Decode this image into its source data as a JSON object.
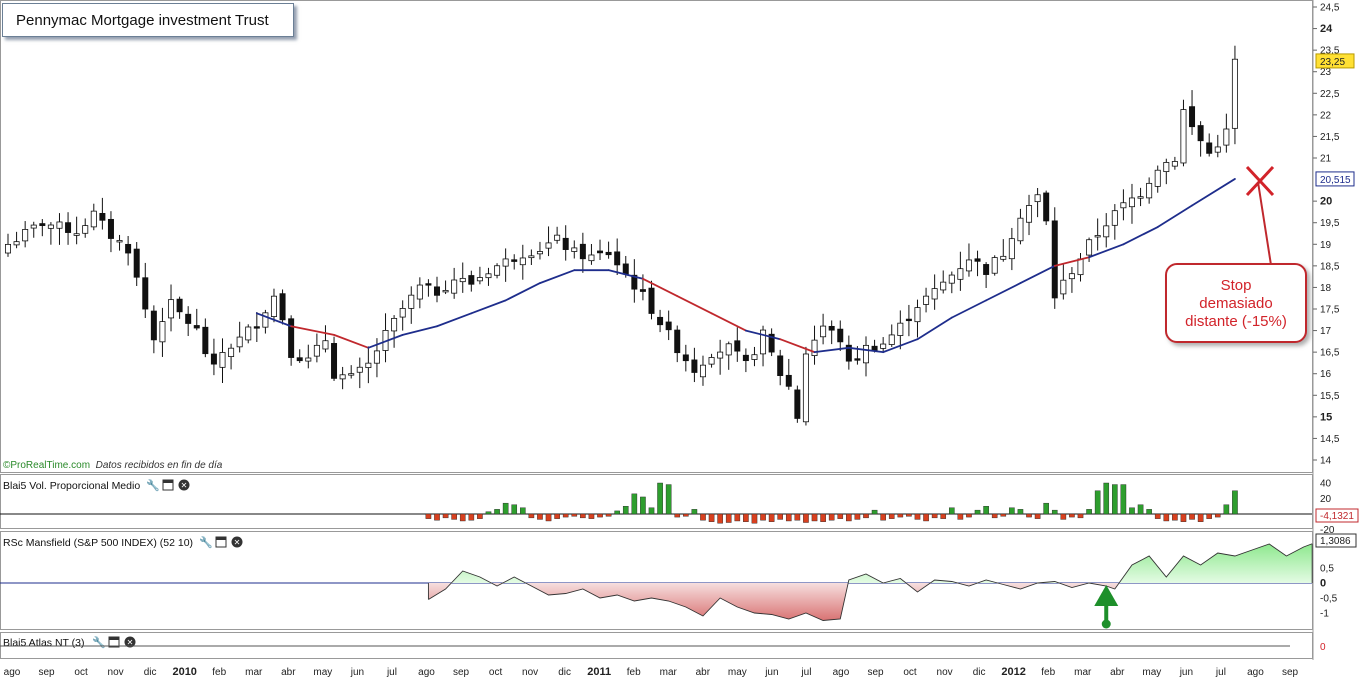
{
  "title": "Pennymac Mortgage investment Trust",
  "annotation": {
    "text_lines": [
      "Stop",
      "demasiado",
      "distante (-15%)"
    ]
  },
  "credit": {
    "brand": "ProRealTime.com",
    "note": "Datos recibidos en fin de día"
  },
  "chart_data": {
    "type": "candlestick",
    "price_axis": {
      "ticks": [
        "24,5",
        "24",
        "23,5",
        "23",
        "22,5",
        "22",
        "21,5",
        "21",
        "20",
        "19,5",
        "19",
        "18,5",
        "18",
        "17,5",
        "17",
        "16,5",
        "16",
        "15,5",
        "15",
        "14,5",
        "14"
      ],
      "bold_ticks": [
        "24",
        "20",
        "15"
      ],
      "min": 14,
      "max": 24.5,
      "last_price": "23,25",
      "ma_value": "20,515"
    },
    "time_axis": [
      {
        "label": "ago",
        "bold": false
      },
      {
        "label": "sep",
        "bold": false
      },
      {
        "label": "oct",
        "bold": false
      },
      {
        "label": "nov",
        "bold": false
      },
      {
        "label": "dic",
        "bold": false
      },
      {
        "label": "2010",
        "bold": true
      },
      {
        "label": "feb",
        "bold": false
      },
      {
        "label": "mar",
        "bold": false
      },
      {
        "label": "abr",
        "bold": false
      },
      {
        "label": "may",
        "bold": false
      },
      {
        "label": "jun",
        "bold": false
      },
      {
        "label": "jul",
        "bold": false
      },
      {
        "label": "ago",
        "bold": false
      },
      {
        "label": "sep",
        "bold": false
      },
      {
        "label": "oct",
        "bold": false
      },
      {
        "label": "nov",
        "bold": false
      },
      {
        "label": "dic",
        "bold": false
      },
      {
        "label": "2011",
        "bold": true
      },
      {
        "label": "feb",
        "bold": false
      },
      {
        "label": "mar",
        "bold": false
      },
      {
        "label": "abr",
        "bold": false
      },
      {
        "label": "may",
        "bold": false
      },
      {
        "label": "jun",
        "bold": false
      },
      {
        "label": "jul",
        "bold": false
      },
      {
        "label": "ago",
        "bold": false
      },
      {
        "label": "sep",
        "bold": false
      },
      {
        "label": "oct",
        "bold": false
      },
      {
        "label": "nov",
        "bold": false
      },
      {
        "label": "dic",
        "bold": false
      },
      {
        "label": "2012",
        "bold": true
      },
      {
        "label": "feb",
        "bold": false
      },
      {
        "label": "mar",
        "bold": false
      },
      {
        "label": "abr",
        "bold": false
      },
      {
        "label": "may",
        "bold": false
      },
      {
        "label": "jun",
        "bold": false
      },
      {
        "label": "jul",
        "bold": false
      },
      {
        "label": "ago",
        "bold": false
      },
      {
        "label": "sep",
        "bold": false
      }
    ],
    "close_path": [
      [
        0,
        19.0
      ],
      [
        4,
        19.5
      ],
      [
        8,
        19.3
      ],
      [
        10,
        19.7
      ],
      [
        12,
        19.2
      ],
      [
        14,
        18.9
      ],
      [
        16,
        17.5
      ],
      [
        17,
        16.8
      ],
      [
        18,
        17.3
      ],
      [
        19,
        17.6
      ],
      [
        20,
        17.4
      ],
      [
        22,
        17.0
      ],
      [
        23,
        16.5
      ],
      [
        24,
        16.1
      ],
      [
        25,
        16.5
      ],
      [
        27,
        16.8
      ],
      [
        29,
        17.2
      ],
      [
        31,
        17.8
      ],
      [
        32,
        17.3
      ],
      [
        33,
        16.5
      ],
      [
        35,
        16.3
      ],
      [
        37,
        16.8
      ],
      [
        38,
        16.0
      ],
      [
        40,
        15.9
      ],
      [
        42,
        16.2
      ],
      [
        44,
        16.9
      ],
      [
        46,
        17.5
      ],
      [
        48,
        18.0
      ],
      [
        50,
        17.9
      ],
      [
        52,
        18.2
      ],
      [
        54,
        18.1
      ],
      [
        56,
        18.4
      ],
      [
        58,
        18.6
      ],
      [
        60,
        18.8
      ],
      [
        62,
        18.9
      ],
      [
        64,
        19.1
      ],
      [
        66,
        18.8
      ],
      [
        68,
        18.7
      ],
      [
        70,
        18.8
      ],
      [
        72,
        18.3
      ],
      [
        74,
        17.8
      ],
      [
        76,
        17.2
      ],
      [
        78,
        16.6
      ],
      [
        80,
        16.1
      ],
      [
        82,
        16.5
      ],
      [
        84,
        16.6
      ],
      [
        86,
        16.2
      ],
      [
        88,
        16.9
      ],
      [
        90,
        16.0
      ],
      [
        91,
        15.7
      ],
      [
        92,
        15.0
      ],
      [
        93,
        16.5
      ],
      [
        95,
        17.1
      ],
      [
        97,
        16.8
      ],
      [
        98,
        16.2
      ],
      [
        100,
        16.6
      ],
      [
        102,
        16.7
      ],
      [
        104,
        17.1
      ],
      [
        106,
        17.6
      ],
      [
        108,
        17.9
      ],
      [
        110,
        18.3
      ],
      [
        112,
        18.7
      ],
      [
        114,
        18.4
      ],
      [
        116,
        18.8
      ],
      [
        118,
        19.7
      ],
      [
        120,
        20.1
      ],
      [
        121,
        19.5
      ],
      [
        122,
        17.8
      ],
      [
        124,
        18.4
      ],
      [
        126,
        19.0
      ],
      [
        128,
        19.5
      ],
      [
        130,
        19.9
      ],
      [
        132,
        20.2
      ],
      [
        134,
        20.8
      ],
      [
        136,
        21.0
      ],
      [
        137,
        22.1
      ],
      [
        138,
        21.7
      ],
      [
        140,
        21.1
      ],
      [
        142,
        21.6
      ],
      [
        143,
        23.25
      ]
    ],
    "moving_average": {
      "points": [
        [
          29,
          17.4
        ],
        [
          33,
          17.1
        ],
        [
          38,
          16.9
        ],
        [
          42,
          16.6
        ],
        [
          46,
          16.9
        ],
        [
          50,
          17.1
        ],
        [
          54,
          17.4
        ],
        [
          58,
          17.7
        ],
        [
          62,
          18.1
        ],
        [
          66,
          18.4
        ],
        [
          70,
          18.4
        ],
        [
          74,
          18.2
        ],
        [
          78,
          17.8
        ],
        [
          82,
          17.4
        ],
        [
          86,
          17.0
        ],
        [
          90,
          16.8
        ],
        [
          94,
          16.5
        ],
        [
          98,
          16.6
        ],
        [
          102,
          16.5
        ],
        [
          106,
          16.8
        ],
        [
          110,
          17.3
        ],
        [
          114,
          17.7
        ],
        [
          118,
          18.1
        ],
        [
          122,
          18.5
        ],
        [
          126,
          18.7
        ],
        [
          130,
          19.0
        ],
        [
          134,
          19.4
        ],
        [
          138,
          19.9
        ],
        [
          143,
          20.515
        ]
      ],
      "below_color": "#c0282d",
      "above_color": "#1e2d8c",
      "value": "20,515"
    },
    "panels": [
      {
        "name": "Blai5 Vol. Proporcional Medio",
        "ticks": [
          "40",
          "20",
          "-20"
        ],
        "last": "-4,1321",
        "bar_start": 49,
        "values": [
          -6,
          -8,
          -5,
          -7,
          -9,
          -8,
          -6,
          3,
          6,
          14,
          12,
          8,
          -5,
          -7,
          -9,
          -6,
          -4,
          -3,
          -5,
          -6,
          -4,
          -3,
          4,
          10,
          26,
          22,
          8,
          40,
          38,
          -4,
          -3,
          6,
          -8,
          -10,
          -12,
          -11,
          -9,
          -10,
          -12,
          -8,
          -10,
          -7,
          -9,
          -8,
          -11,
          -9,
          -10,
          -8,
          -6,
          -9,
          -7,
          -5,
          5,
          -8,
          -6,
          -4,
          -3,
          -7,
          -9,
          -5,
          -6,
          8,
          -7,
          -4,
          5,
          10,
          -5,
          -3,
          8,
          6,
          -4,
          -6,
          14,
          5,
          -7,
          -4,
          -5,
          6,
          30,
          40,
          38,
          38,
          8,
          12,
          6,
          -6,
          -9,
          -8,
          -10,
          -7,
          -10,
          -6,
          -4,
          12,
          30,
          -9,
          -12,
          -8,
          -10,
          -11,
          -12,
          -10,
          -13,
          -11,
          -12,
          -10,
          -9,
          8,
          40,
          5,
          -3,
          -4,
          -5
        ]
      },
      {
        "name": "RSc Mansfield (S&P 500 INDEX) (52 10)",
        "ticks": [
          "0,5",
          "0",
          "-0,5",
          "-1"
        ],
        "last": "1,3086",
        "points": [
          [
            49,
            -0.55
          ],
          [
            51,
            -0.2
          ],
          [
            53,
            0.4
          ],
          [
            55,
            0.2
          ],
          [
            57,
            -0.1
          ],
          [
            59,
            0.2
          ],
          [
            61,
            -0.1
          ],
          [
            63,
            -0.4
          ],
          [
            65,
            -0.35
          ],
          [
            67,
            -0.2
          ],
          [
            69,
            -0.5
          ],
          [
            71,
            -0.4
          ],
          [
            73,
            -0.6
          ],
          [
            75,
            -0.5
          ],
          [
            77,
            -0.6
          ],
          [
            79,
            -0.8
          ],
          [
            81,
            -1.1
          ],
          [
            83,
            -0.5
          ],
          [
            85,
            -0.8
          ],
          [
            87,
            -1.0
          ],
          [
            89,
            -1.05
          ],
          [
            91,
            -1.2
          ],
          [
            93,
            -1.0
          ],
          [
            95,
            -1.25
          ],
          [
            97,
            -1.2
          ],
          [
            98,
            0.1
          ],
          [
            100,
            0.3
          ],
          [
            102,
            0.0
          ],
          [
            104,
            0.15
          ],
          [
            106,
            -0.3
          ],
          [
            108,
            0.1
          ],
          [
            110,
            0.05
          ],
          [
            112,
            -0.1
          ],
          [
            114,
            0.1
          ],
          [
            116,
            -0.05
          ],
          [
            118,
            -0.2
          ],
          [
            120,
            0.0
          ],
          [
            122,
            0.05
          ],
          [
            124,
            -0.15
          ],
          [
            126,
            0.0
          ],
          [
            128,
            -0.1
          ],
          [
            129,
            -0.2
          ],
          [
            131,
            0.6
          ],
          [
            133,
            0.9
          ],
          [
            135,
            0.2
          ],
          [
            137,
            0.9
          ],
          [
            139,
            0.6
          ],
          [
            141,
            1.0
          ],
          [
            143,
            0.9
          ],
          [
            145,
            1.1
          ],
          [
            147,
            1.3
          ],
          [
            149,
            0.9
          ],
          [
            151,
            1.2
          ],
          [
            152,
            1.3086
          ]
        ],
        "arrow_x": 128
      },
      {
        "name": "Blai5 Atlas NT (3)",
        "last": "0"
      }
    ],
    "colors": {
      "up_body": "#ffffff",
      "down_body": "#111111",
      "vol_up": "#2e9e2e",
      "vol_down": "#d8401f",
      "rs_pos_fill": "#c6f5c6",
      "rs_neg_fill": "#e79b9b",
      "arrow": "#1d8f2a",
      "callout": "#c0282d",
      "last_price_bg": "#ffe033"
    }
  }
}
